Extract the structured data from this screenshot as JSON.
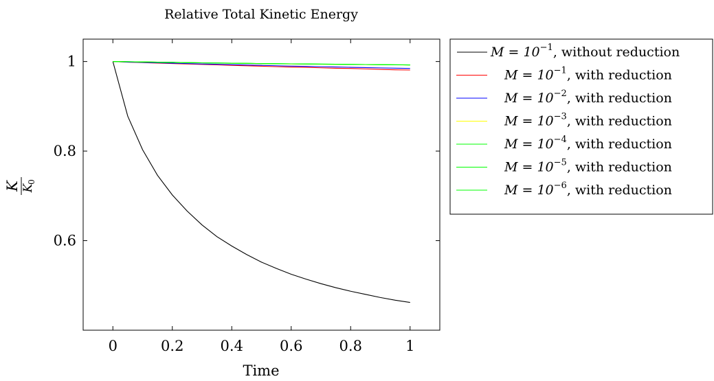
{
  "chart_data": {
    "type": "line",
    "title": "Relative Total Kinetic Energy",
    "xlabel": "Time",
    "ylabel": {
      "numerator": "K",
      "denominator": "K",
      "denominator_sub": "0"
    },
    "xlim": [
      -0.1,
      1.1
    ],
    "ylim": [
      0.4,
      1.05
    ],
    "x_ticks": [
      0,
      0.2,
      0.4,
      0.6,
      0.8,
      1
    ],
    "x_tick_labels": [
      "0",
      "0.2",
      "0.4",
      "0.6",
      "0.8",
      "1"
    ],
    "y_ticks": [
      0.6,
      0.8,
      1
    ],
    "y_tick_labels": [
      "0.6",
      "0.8",
      "1"
    ],
    "grid": false,
    "legend_position": "outside-right",
    "x": [
      0,
      0.05,
      0.1,
      0.15,
      0.2,
      0.25,
      0.3,
      0.35,
      0.4,
      0.45,
      0.5,
      0.55,
      0.6,
      0.65,
      0.7,
      0.75,
      0.8,
      0.85,
      0.9,
      0.95,
      1
    ],
    "series": [
      {
        "legend": {
          "math": "M = 10",
          "exp": "−1",
          "text": ", without reduction"
        },
        "color": "#000000",
        "values": [
          1.0,
          0.878,
          0.803,
          0.746,
          0.702,
          0.666,
          0.635,
          0.609,
          0.588,
          0.569,
          0.552,
          0.538,
          0.525,
          0.514,
          0.504,
          0.495,
          0.487,
          0.48,
          0.473,
          0.467,
          0.462
        ]
      },
      {
        "legend": {
          "math": "M = 10",
          "exp": "−1",
          "text": ", with reduction"
        },
        "color": "#ff0000",
        "values": [
          1.0,
          0.9985,
          0.9975,
          0.9965,
          0.9955,
          0.9945,
          0.9935,
          0.9925,
          0.9915,
          0.9905,
          0.9895,
          0.9885,
          0.9875,
          0.987,
          0.986,
          0.985,
          0.9845,
          0.9835,
          0.9825,
          0.9815,
          0.981
        ]
      },
      {
        "legend": {
          "math": "M = 10",
          "exp": "−2",
          "text": ", with reduction"
        },
        "color": "#0000ff",
        "values": [
          1.0,
          0.9988,
          0.998,
          0.9971,
          0.9963,
          0.9954,
          0.9946,
          0.9938,
          0.993,
          0.9922,
          0.9914,
          0.9906,
          0.9898,
          0.9892,
          0.9885,
          0.9878,
          0.9871,
          0.9865,
          0.9858,
          0.9852,
          0.9845
        ]
      },
      {
        "legend": {
          "math": "M = 10",
          "exp": "−3",
          "text": ", with reduction"
        },
        "color": "#ffff00",
        "values": [
          1.0,
          0.9995,
          0.999,
          0.9985,
          0.998,
          0.9975,
          0.997,
          0.9965,
          0.996,
          0.9957,
          0.9953,
          0.995,
          0.9946,
          0.9943,
          0.994,
          0.9937,
          0.9934,
          0.9931,
          0.9928,
          0.9925,
          0.9922
        ]
      },
      {
        "legend": {
          "math": "M = 10",
          "exp": "−4",
          "text": ", with reduction"
        },
        "color": "#00ff00",
        "values": [
          1.0,
          0.9996,
          0.9991,
          0.9986,
          0.9981,
          0.9976,
          0.9971,
          0.9966,
          0.9962,
          0.9958,
          0.9954,
          0.9951,
          0.9948,
          0.9945,
          0.9942,
          0.9939,
          0.9936,
          0.9933,
          0.993,
          0.9927,
          0.9924
        ]
      },
      {
        "legend": {
          "math": "M = 10",
          "exp": "−5",
          "text": ", with reduction"
        },
        "color": "#00ff00",
        "values": [
          1.0,
          0.9996,
          0.9991,
          0.9986,
          0.9981,
          0.9976,
          0.9971,
          0.9966,
          0.9962,
          0.9958,
          0.9954,
          0.9951,
          0.9948,
          0.9945,
          0.9942,
          0.9939,
          0.9936,
          0.9933,
          0.993,
          0.9927,
          0.9924
        ]
      },
      {
        "legend": {
          "math": "M = 10",
          "exp": "−6",
          "text": ", with reduction"
        },
        "color": "#00ff00",
        "values": [
          1.0,
          0.9996,
          0.9991,
          0.9986,
          0.9981,
          0.9976,
          0.9971,
          0.9966,
          0.9962,
          0.9958,
          0.9954,
          0.9951,
          0.9948,
          0.9945,
          0.9942,
          0.9939,
          0.9936,
          0.9933,
          0.993,
          0.9927,
          0.9924
        ]
      }
    ]
  }
}
